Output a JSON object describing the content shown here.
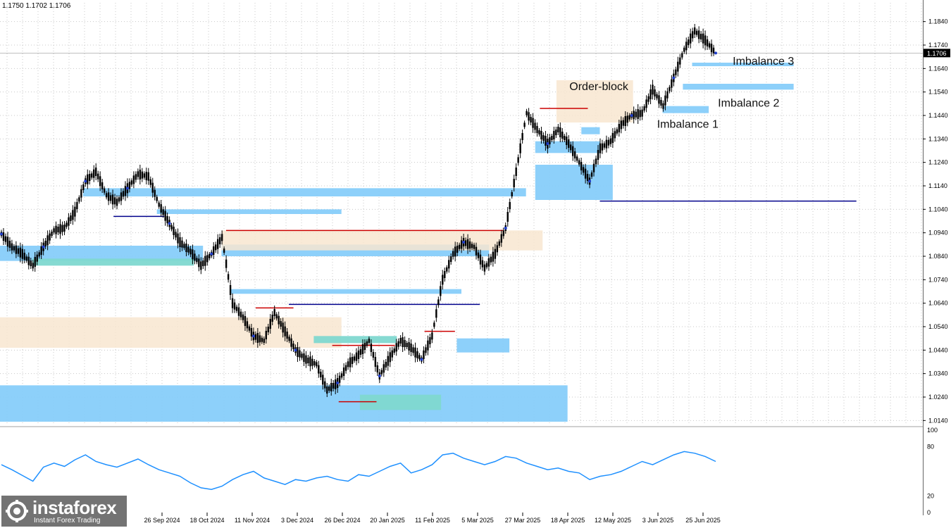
{
  "header": {
    "ohlc_text": "1.1750 1.1702 1.1706"
  },
  "branding": {
    "brand": "instaforex",
    "tagline": "Instant Forex Trading"
  },
  "colors": {
    "bull_line": "#000000",
    "demand_zone": "#87CEFA",
    "supply_zone": "#F8E6D0",
    "mixed_zone": "#7FD8D0",
    "resistance_line": "#CC0000",
    "support_line": "#00008B",
    "oscillator": "#1E90FF",
    "swing_marker": "#1E3CC8",
    "current_price_bg": "#000000"
  },
  "chart_data": [
    {
      "type": "line",
      "title": "",
      "price_axis": {
        "ticks": [
          "1.1840",
          "1.1740",
          "1.1640",
          "1.1540",
          "1.1440",
          "1.1340",
          "1.1240",
          "1.1140",
          "1.1040",
          "1.0940",
          "1.0840",
          "1.0740",
          "1.0640",
          "1.0540",
          "1.0440",
          "1.0340",
          "1.0240",
          "1.0140"
        ],
        "range": [
          1.012,
          1.192
        ],
        "current_price": "1.1706"
      },
      "time_axis": {
        "labels": [
          "26 Sep 2024",
          "18 Oct 2024",
          "11 Nov 2024",
          "3 Dec 2024",
          "26 Dec 2024",
          "20 Jan 2025",
          "11 Feb 2025",
          "5 Mar 2025",
          "27 Mar 2025",
          "18 Apr 2025",
          "12 May 2025",
          "3 Jun 2025",
          "25 Jun 2025"
        ]
      },
      "series": [
        {
          "values": [
            1.0935,
            1.088,
            1.085,
            1.08,
            1.088,
            1.095,
            1.096,
            1.103,
            1.116,
            1.12,
            1.11,
            1.107,
            1.113,
            1.119,
            1.118,
            1.106,
            1.098,
            1.09,
            1.086,
            1.08,
            1.085,
            1.092,
            1.064,
            1.058,
            1.05,
            1.048,
            1.06,
            1.052,
            1.044,
            1.04,
            1.038,
            1.027,
            1.03,
            1.038,
            1.042,
            1.048,
            1.033,
            1.041,
            1.048,
            1.045,
            1.04,
            1.05,
            1.074,
            1.085,
            1.09,
            1.088,
            1.079,
            1.085,
            1.096,
            1.12,
            1.145,
            1.138,
            1.132,
            1.138,
            1.132,
            1.124,
            1.116,
            1.13,
            1.133,
            1.14,
            1.144,
            1.145,
            1.155,
            1.148,
            1.16,
            1.172,
            1.18,
            1.176,
            1.1706
          ]
        }
      ],
      "zones": [
        {
          "kind": "demand",
          "y0": 1.029,
          "y1": 1.0135,
          "x0": 0,
          "x1": 0.615
        },
        {
          "kind": "demand",
          "y0": 1.113,
          "y1": 1.1095,
          "x0": 0.09,
          "x1": 0.57
        },
        {
          "kind": "demand",
          "y0": 1.0885,
          "y1": 1.082,
          "x0": 0.0,
          "x1": 0.22
        },
        {
          "kind": "demand",
          "y0": 1.089,
          "y1": 1.084,
          "x0": 0.24,
          "x1": 0.53
        },
        {
          "kind": "demand",
          "y0": 1.07,
          "y1": 1.068,
          "x0": 0.25,
          "x1": 0.5
        },
        {
          "kind": "demand",
          "y0": 1.049,
          "y1": 1.043,
          "x0": 0.495,
          "x1": 0.552
        },
        {
          "kind": "demand",
          "y0": 1.123,
          "y1": 1.108,
          "x0": 0.58,
          "x1": 0.664
        },
        {
          "kind": "demand",
          "y0": 1.133,
          "y1": 1.128,
          "x0": 0.58,
          "x1": 0.65
        },
        {
          "kind": "demand",
          "y0": 1.139,
          "y1": 1.136,
          "x0": 0.63,
          "x1": 0.65
        },
        {
          "kind": "demand",
          "y0": 1.148,
          "y1": 1.145,
          "x0": 0.718,
          "x1": 0.768
        },
        {
          "kind": "demand",
          "y0": 1.1575,
          "y1": 1.155,
          "x0": 0.74,
          "x1": 0.86
        },
        {
          "kind": "demand",
          "y0": 1.1665,
          "y1": 1.165,
          "x0": 0.75,
          "x1": 0.86
        },
        {
          "kind": "supply",
          "y0": 1.095,
          "y1": 1.0865,
          "x0": 0.24,
          "x1": 0.588
        },
        {
          "kind": "supply",
          "y0": 1.058,
          "y1": 1.045,
          "x0": 0,
          "x1": 0.37
        },
        {
          "kind": "supply",
          "y0": 1.159,
          "y1": 1.141,
          "x0": 0.603,
          "x1": 0.686
        },
        {
          "kind": "mixed",
          "y0": 1.083,
          "y1": 1.08,
          "x0": 0.035,
          "x1": 0.21
        },
        {
          "kind": "mixed",
          "y0": 1.05,
          "y1": 1.047,
          "x0": 0.34,
          "x1": 0.43
        },
        {
          "kind": "mixed",
          "y0": 1.025,
          "y1": 1.0185,
          "x0": 0.39,
          "x1": 0.478
        },
        {
          "kind": "demand",
          "y0": 1.104,
          "y1": 1.102,
          "x0": 0.17,
          "x1": 0.37
        }
      ],
      "hlines": [
        {
          "kind": "resistance",
          "y": 1.095,
          "x0": 0.245,
          "x1": 0.545
        },
        {
          "kind": "resistance",
          "y": 1.062,
          "x0": 0.277,
          "x1": 0.318
        },
        {
          "kind": "resistance",
          "y": 1.052,
          "x0": 0.46,
          "x1": 0.493
        },
        {
          "kind": "resistance",
          "y": 1.046,
          "x0": 0.36,
          "x1": 0.428
        },
        {
          "kind": "resistance",
          "y": 1.022,
          "x0": 0.367,
          "x1": 0.408
        },
        {
          "kind": "resistance",
          "y": 1.147,
          "x0": 0.585,
          "x1": 0.637
        },
        {
          "kind": "support",
          "y": 1.1075,
          "x0": 0.65,
          "x1": 0.928
        },
        {
          "kind": "support",
          "y": 1.0635,
          "x0": 0.313,
          "x1": 0.52
        },
        {
          "kind": "support",
          "y": 1.101,
          "x0": 0.123,
          "x1": 0.178
        }
      ],
      "annotations": [
        {
          "text": "Order-block",
          "price": 1.1548,
          "pos": 0.617
        },
        {
          "text": "Imbalance 1",
          "price": 1.1387,
          "pos": 0.712
        },
        {
          "text": "Imbalance 2",
          "price": 1.1477,
          "pos": 0.778
        },
        {
          "text": "Imbalance 3",
          "price": 1.1656,
          "pos": 0.794
        }
      ]
    },
    {
      "type": "line",
      "title": "",
      "axis": {
        "ticks": [
          "100",
          "80",
          "20",
          "0"
        ],
        "range": [
          0,
          100
        ]
      },
      "series": [
        {
          "values": [
            58,
            52,
            45,
            38,
            55,
            60,
            56,
            64,
            70,
            62,
            58,
            55,
            60,
            65,
            58,
            52,
            48,
            44,
            36,
            30,
            28,
            32,
            40,
            46,
            50,
            42,
            38,
            34,
            40,
            38,
            42,
            44,
            40,
            38,
            46,
            44,
            50,
            56,
            60,
            48,
            52,
            58,
            70,
            72,
            66,
            62,
            58,
            62,
            68,
            66,
            60,
            56,
            52,
            54,
            50,
            48,
            40,
            44,
            46,
            50,
            56,
            62,
            58,
            64,
            70,
            74,
            72,
            68,
            62
          ]
        }
      ]
    }
  ]
}
